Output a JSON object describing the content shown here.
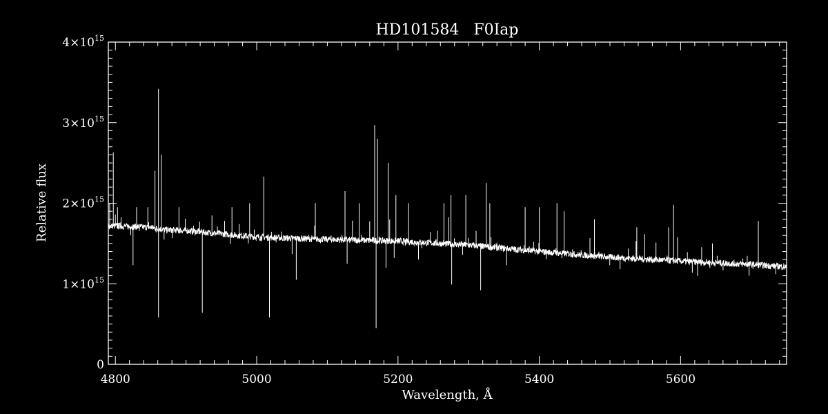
{
  "chart_data": {
    "type": "line",
    "title": "HD101584   F0Iap",
    "xlabel": "Wavelength, Å",
    "ylabel": "Relative flux",
    "xlim": [
      4790,
      5750
    ],
    "ylim": [
      0,
      4000000000000000.0
    ],
    "x_ticks": [
      4800,
      5000,
      5200,
      5400,
      5600
    ],
    "y_ticks": [
      {
        "value": 0,
        "mantissa": "0",
        "exponent": ""
      },
      {
        "value": 1000000000000000.0,
        "mantissa": "1×10",
        "exponent": "15"
      },
      {
        "value": 2000000000000000.0,
        "mantissa": "2×10",
        "exponent": "15"
      },
      {
        "value": 3000000000000000.0,
        "mantissa": "3×10",
        "exponent": "15"
      },
      {
        "value": 4000000000000000.0,
        "mantissa": "4×10",
        "exponent": "15"
      }
    ],
    "grid": false,
    "series": [
      {
        "color": "#ffffff",
        "continuum": [
          [
            4790,
            1720000000000000.0
          ],
          [
            4850,
            1700000000000000.0
          ],
          [
            4870,
            1670000000000000.0
          ],
          [
            4900,
            1660000000000000.0
          ],
          [
            5000,
            1580000000000000.0
          ],
          [
            5100,
            1550000000000000.0
          ],
          [
            5200,
            1530000000000000.0
          ],
          [
            5300,
            1480000000000000.0
          ],
          [
            5400,
            1400000000000000.0
          ],
          [
            5500,
            1330000000000000.0
          ],
          [
            5600,
            1280000000000000.0
          ],
          [
            5700,
            1240000000000000.0
          ],
          [
            5750,
            1210000000000000.0
          ]
        ],
        "emission_lines": [
          [
            4792,
            2000000000000000.0
          ],
          [
            4797,
            2630000000000000.0
          ],
          [
            4803,
            1950000000000000.0
          ],
          [
            4830,
            1950000000000000.0
          ],
          [
            4846,
            1950000000000000.0
          ],
          [
            4856,
            2400000000000000.0
          ],
          [
            4861,
            3420000000000000.0
          ],
          [
            4865,
            2600000000000000.0
          ],
          [
            4890,
            1950000000000000.0
          ],
          [
            4965,
            1950000000000000.0
          ],
          [
            4990,
            2000000000000000.0
          ],
          [
            5010,
            2330000000000000.0
          ],
          [
            5083,
            2000000000000000.0
          ],
          [
            5125,
            2150000000000000.0
          ],
          [
            5145,
            2000000000000000.0
          ],
          [
            5167,
            2970000000000000.0
          ],
          [
            5171,
            2800000000000000.0
          ],
          [
            5186,
            2500000000000000.0
          ],
          [
            5197,
            2100000000000000.0
          ],
          [
            5215,
            2000000000000000.0
          ],
          [
            5265,
            2000000000000000.0
          ],
          [
            5275,
            2100000000000000.0
          ],
          [
            5296,
            2100000000000000.0
          ],
          [
            5325,
            2250000000000000.0
          ],
          [
            5330,
            2000000000000000.0
          ],
          [
            5380,
            1950000000000000.0
          ],
          [
            5400,
            1950000000000000.0
          ],
          [
            5425,
            2000000000000000.0
          ],
          [
            5435,
            1900000000000000.0
          ],
          [
            5478,
            1800000000000000.0
          ],
          [
            5538,
            1700000000000000.0
          ],
          [
            5583,
            1700000000000000.0
          ],
          [
            5590,
            1980000000000000.0
          ],
          [
            5645,
            1500000000000000.0
          ],
          [
            5710,
            1780000000000000.0
          ]
        ],
        "absorption_lines": [
          [
            4825,
            1230000000000000.0
          ],
          [
            4861,
            580000000000000.0
          ],
          [
            4923,
            640000000000000.0
          ],
          [
            5018,
            580000000000000.0
          ],
          [
            5056,
            1050000000000000.0
          ],
          [
            5128,
            1250000000000000.0
          ],
          [
            5169,
            450000000000000.0
          ],
          [
            5183,
            1200000000000000.0
          ],
          [
            5229,
            1300000000000000.0
          ],
          [
            5276,
            990000000000000.0
          ],
          [
            5317,
            920000000000000.0
          ],
          [
            5624,
            1100000000000000.0
          ],
          [
            5697,
            1100000000000000.0
          ]
        ]
      }
    ]
  }
}
